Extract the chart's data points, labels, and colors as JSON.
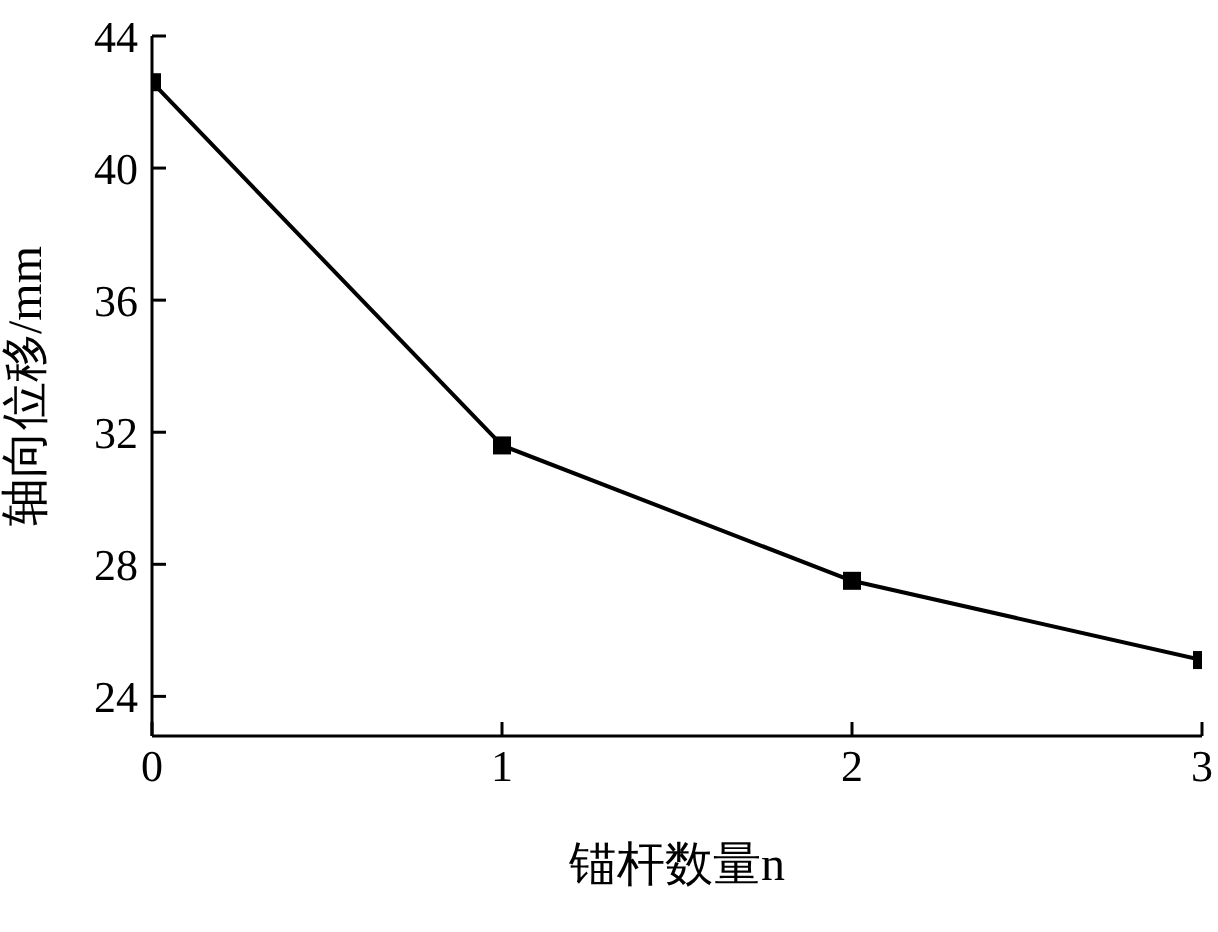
{
  "chart_data": {
    "type": "line",
    "xlabel": "锚杆数量n",
    "ylabel": "轴向位移/mm",
    "x": [
      0,
      1,
      2,
      3
    ],
    "series": [
      {
        "color": "#000000",
        "values": [
          42.6,
          31.6,
          27.5,
          25.1
        ]
      }
    ],
    "xlim": [
      0,
      3
    ],
    "xticks": [
      0,
      1,
      2,
      3
    ],
    "ylim": [
      22.8,
      44
    ],
    "yticks": [
      24,
      28,
      32,
      36,
      40,
      44
    ],
    "grid": false,
    "legend": false,
    "marker": "square",
    "line_style": "solid"
  }
}
